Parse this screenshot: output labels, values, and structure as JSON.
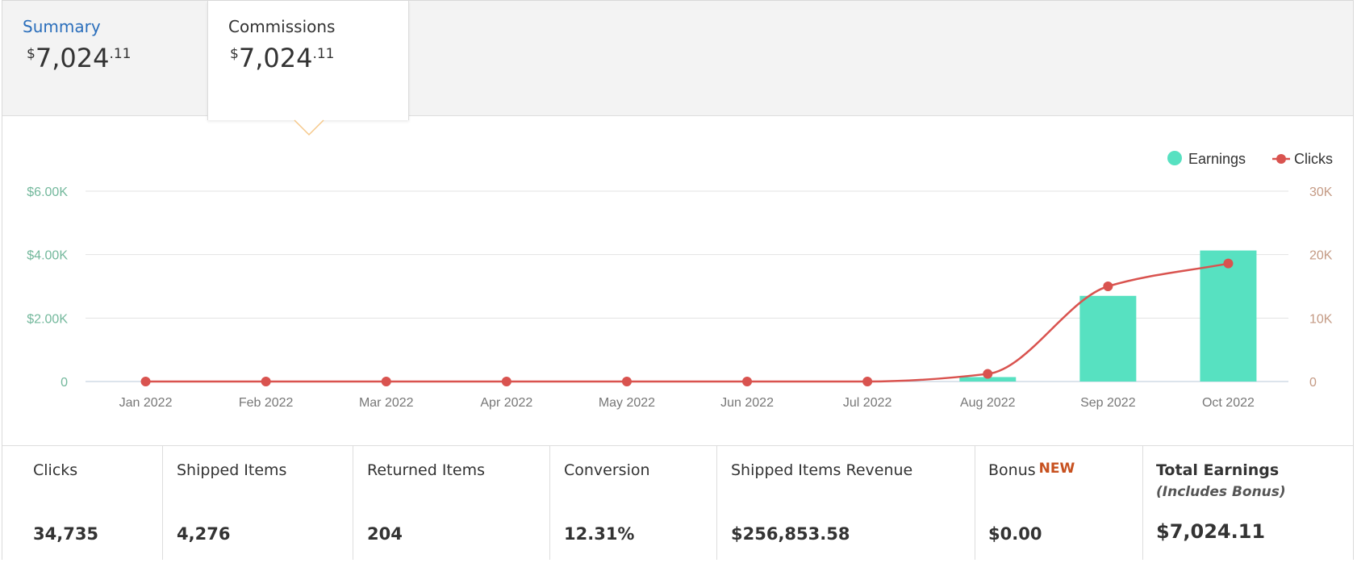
{
  "tabs": [
    {
      "label": "Summary",
      "currency": "$",
      "amount": "7,024",
      "cents": ".11"
    },
    {
      "label": "Commissions",
      "currency": "$",
      "amount": "7,024",
      "cents": ".11"
    }
  ],
  "colors": {
    "earnings": "#57e1c1",
    "clicks": "#d9534f",
    "left_axis": "#73b89c",
    "right_axis": "#c49a84",
    "link": "#2a6ebb",
    "new_badge": "#c7511f"
  },
  "chart_data": {
    "type": "bar",
    "categories": [
      "Jan 2022",
      "Feb 2022",
      "Mar 2022",
      "Apr 2022",
      "May 2022",
      "Jun 2022",
      "Jul 2022",
      "Aug 2022",
      "Sep 2022",
      "Oct 2022"
    ],
    "series": [
      {
        "name": "Earnings",
        "type": "bar",
        "axis": "left",
        "values": [
          0,
          0,
          0,
          0,
          0,
          0,
          0,
          140,
          2700,
          4130
        ]
      },
      {
        "name": "Clicks",
        "type": "line",
        "axis": "right",
        "values": [
          0,
          0,
          0,
          0,
          0,
          0,
          0,
          1200,
          15000,
          18600
        ]
      }
    ],
    "y_left": {
      "ticks": [
        0,
        2000,
        4000,
        6000
      ],
      "tick_labels": [
        "0",
        "$2.00K",
        "$4.00K",
        "$6.00K"
      ],
      "range": [
        0,
        6000
      ]
    },
    "y_right": {
      "ticks": [
        0,
        10000,
        20000,
        30000
      ],
      "tick_labels": [
        "0",
        "10K",
        "20K",
        "30K"
      ],
      "range": [
        0,
        30000
      ]
    },
    "grid": true,
    "legend_position": "top-right"
  },
  "stats": [
    {
      "label": "Clicks",
      "value": "34,735"
    },
    {
      "label": "Shipped Items",
      "value": "4,276"
    },
    {
      "label": "Returned Items",
      "value": "204"
    },
    {
      "label": "Conversion",
      "value": "12.31%"
    },
    {
      "label": "Shipped Items Revenue",
      "value": "$256,853.58"
    },
    {
      "label": "Bonus",
      "badge": "NEW",
      "value": "$0.00"
    },
    {
      "label": "Total Earnings",
      "sublabel": "(Includes Bonus)",
      "value": "$7,024.11"
    }
  ]
}
